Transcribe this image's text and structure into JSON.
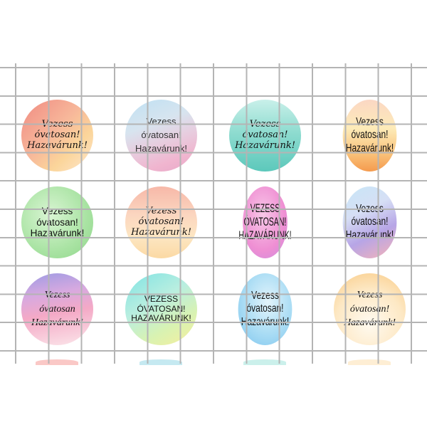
{
  "stickers": [
    {
      "lines": [
        "Vezess",
        "óvatosan!",
        "Hazavárunk!"
      ],
      "style": "f-script",
      "bg": "linear-gradient(135deg,#f08a82 0%,#f7b79a 45%,#fbd59a 70%,#fde7cf 100%)"
    },
    {
      "lines": [
        "Vezess",
        "óvatosan!",
        "Hazavárunk!"
      ],
      "style": "f-thin",
      "bg": "linear-gradient(160deg,#bfe1f3 0%,#d7e4ef 35%,#e6cfe0 55%,#f0b5cf 80%,#e8a8c8 100%)"
    },
    {
      "lines": [
        "Vezess",
        "óvatosan!",
        "Hazavárunk!"
      ],
      "style": "f-script",
      "bg": "linear-gradient(180deg,#c9f0ea 0%,#8fdcd0 45%,#5cc8bb 100%)"
    },
    {
      "lines": [
        "Vezess",
        "óvatosan!",
        "Hazavárunk!"
      ],
      "style": "f-tall",
      "bg": "linear-gradient(180deg,#fbd7c4 0%,#fdebb8 40%,#f9c27a 75%,#f59b4e 100%)"
    },
    {
      "lines": [
        "Vezess",
        "óvatosan!",
        "Hazavárunk!"
      ],
      "style": "f-sans",
      "bg": "radial-gradient(circle at 40% 40%,#d9f5d3 0%,#a9e3a3 60%,#8fd68a 100%)"
    },
    {
      "lines": [
        "Vezess",
        "óvatosan!",
        "Hazavárunk!"
      ],
      "style": "f-script",
      "bg": "linear-gradient(180deg,#f7b8a8 0%,#fbd6c0 40%,#fde6c2 70%,#fbd9a4 100%)"
    },
    {
      "lines": [
        "VEZESS",
        "ÓVATOSAN!",
        "HAZAVÁRUNK!"
      ],
      "style": "f-capstall",
      "bg": "radial-gradient(circle at 45% 40%,#f8c8e8 0%,#ef8fd3 60%,#c98be0 100%)"
    },
    {
      "lines": [
        "Vezess",
        "óvatosan!",
        "Hazavárunk!"
      ],
      "style": "f-tall",
      "bg": "linear-gradient(160deg,#c7e6f6 0%,#d6dff5 35%,#b7a5e6 65%,#f6b3b7 100%)"
    },
    {
      "lines": [
        "Vezess",
        "óvatosan",
        "Hazavárunk!"
      ],
      "style": "f-fancy",
      "bg": "linear-gradient(170deg,#9d9be3 0%,#d7a9e0 30%,#f4a9c6 55%,#fbe6ea 100%)"
    },
    {
      "lines": [
        "VEZESS",
        "ÓVATOSAN!",
        "HAZAVÁRUNK!"
      ],
      "style": "f-caps",
      "bg": "linear-gradient(150deg,#7fe3e3 0%,#b9eee0 40%,#d8f2b2 70%,#f7ef9c 100%)"
    },
    {
      "lines": [
        "Vezess",
        "óvatosan!",
        "Hazavárunk!"
      ],
      "style": "f-tall",
      "bg": "radial-gradient(circle at 55% 40%,#e3f4fb 0%,#a9dcf4 55%,#7cc4ee 100%)"
    },
    {
      "lines": [
        "Vezess",
        "óvatosan!",
        "Hazavárunk!"
      ],
      "style": "f-fancy",
      "bg": "radial-gradient(circle at 50% 70%,#fffaf0 0%,#fde8c4 55%,#f9c982 100%)"
    }
  ],
  "peek_colors": [
    "#f6a3a0",
    "#9fdbe8",
    "#a8e6dd",
    "#fde3b8"
  ]
}
